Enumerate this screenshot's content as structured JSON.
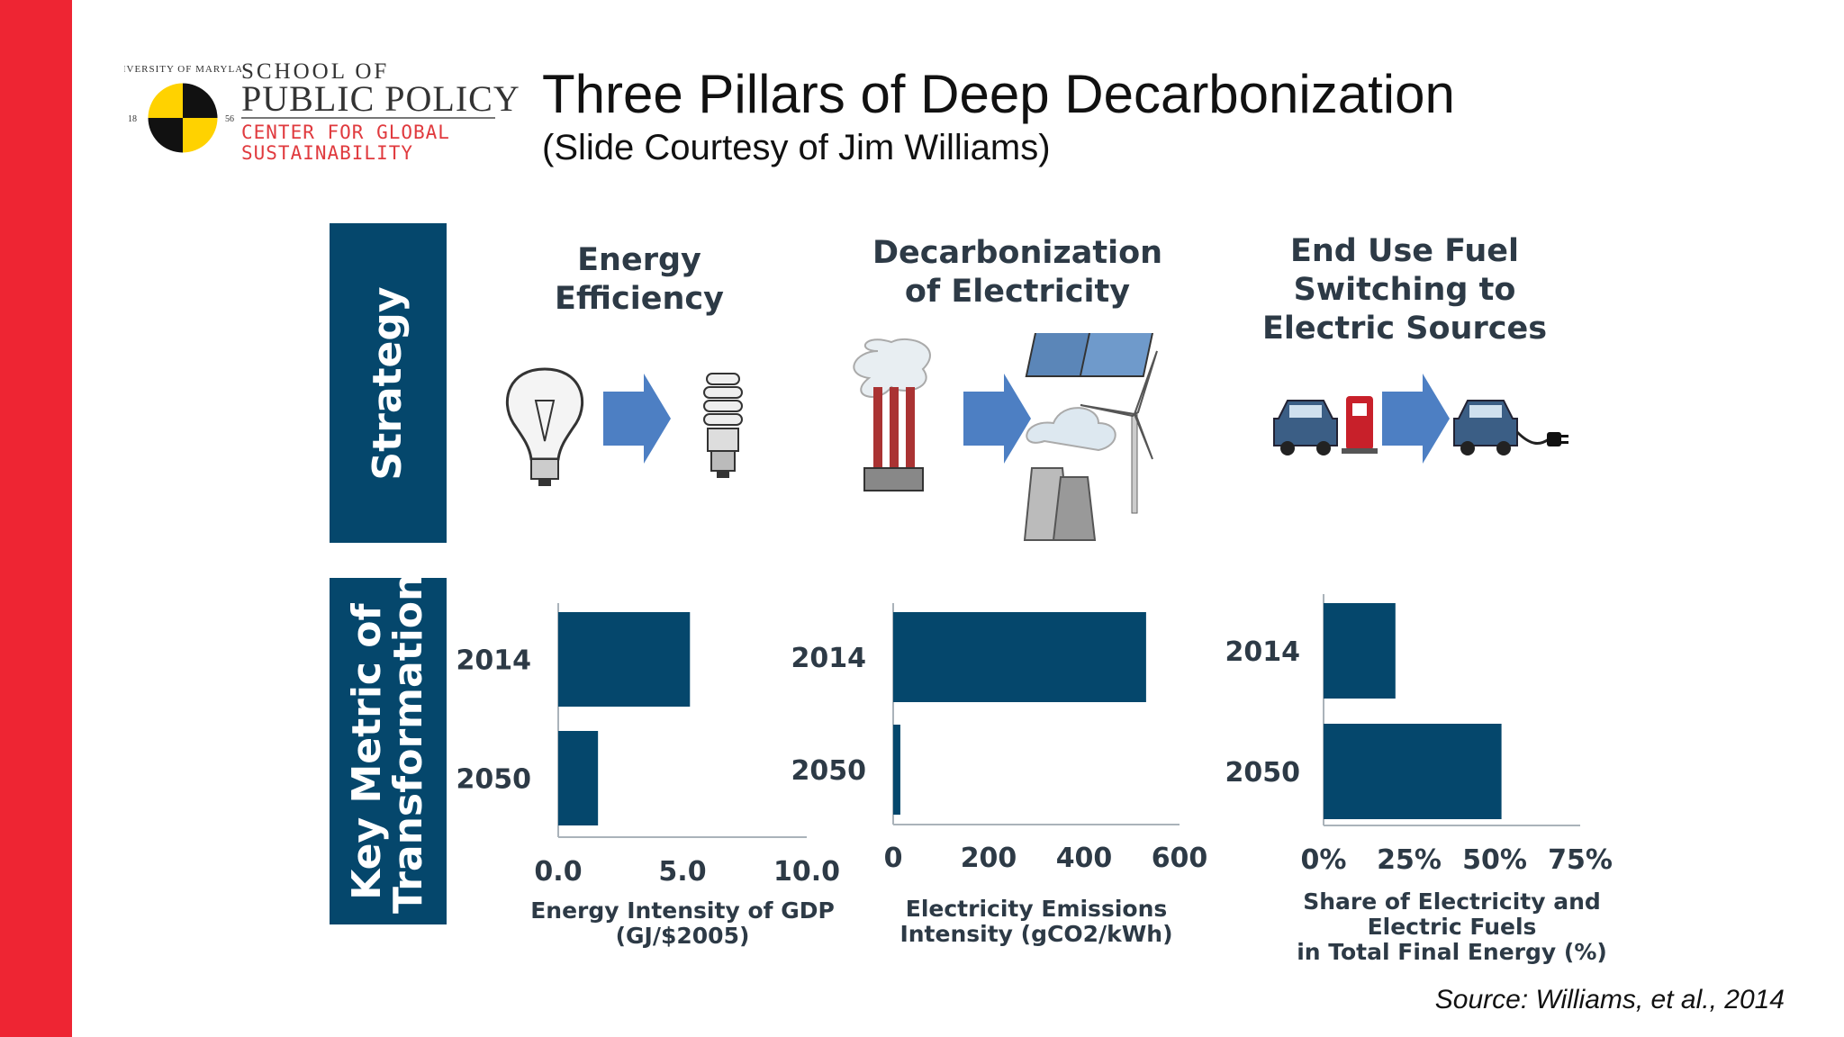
{
  "header": {
    "title": "Three Pillars of Deep Decarbonization",
    "subtitle": "(Slide Courtesy of Jim Williams)",
    "source": "Source: Williams, et al., 2014"
  },
  "logo": {
    "school_line1": "SCHOOL OF",
    "school_line2": "PUBLIC POLICY",
    "center_line1": "CENTER FOR GLOBAL",
    "center_line2": "SUSTAINABILITY",
    "seal_text": "UNIVERSITY OF MARYLAND",
    "seal_year_left": "18",
    "seal_year_right": "56"
  },
  "rows": {
    "strategy_label": "Strategy",
    "metric_label": "Key Metric of Transformation"
  },
  "pillars": [
    {
      "heading": "Energy\nEfficiency",
      "icons": [
        "incandescent-bulb-icon",
        "arrow-right-icon",
        "cfl-bulb-icon"
      ]
    },
    {
      "heading": "Decarbonization\nof Electricity",
      "icons": [
        "smokestack-icon",
        "arrow-right-icon",
        "solar-panel-icon",
        "wind-turbine-icon",
        "nuclear-plant-icon"
      ]
    },
    {
      "heading": "End Use Fuel\nSwitching to\nElectric Sources",
      "icons": [
        "car-icon",
        "gas-pump-icon",
        "arrow-right-icon",
        "electric-car-icon",
        "plug-icon"
      ]
    }
  ],
  "colors": {
    "bar": "#05476c",
    "accent_red": "#ee2533",
    "text": "#2d3a46"
  },
  "chart_data": [
    {
      "type": "bar",
      "orientation": "horizontal",
      "categories": [
        "2014",
        "2050"
      ],
      "values": [
        5.3,
        1.6
      ],
      "xlim": [
        0,
        10
      ],
      "xticks": [
        "0.0",
        "5.0",
        "10.0"
      ],
      "xlabel": "Energy Intensity of GDP\n(GJ/$2005)"
    },
    {
      "type": "bar",
      "orientation": "horizontal",
      "categories": [
        "2014",
        "2050"
      ],
      "values": [
        530,
        15
      ],
      "xlim": [
        0,
        600
      ],
      "xticks": [
        "0",
        "200",
        "400",
        "600"
      ],
      "xlabel": "Electricity Emissions\nIntensity (gCO2/kWh)"
    },
    {
      "type": "bar",
      "orientation": "horizontal",
      "categories": [
        "2014",
        "2050"
      ],
      "values": [
        21,
        52
      ],
      "xlim": [
        0,
        75
      ],
      "xticks": [
        "0%",
        "25%",
        "50%",
        "75%"
      ],
      "xlabel": "Share of Electricity and\nElectric Fuels\nin Total Final Energy (%)"
    }
  ]
}
